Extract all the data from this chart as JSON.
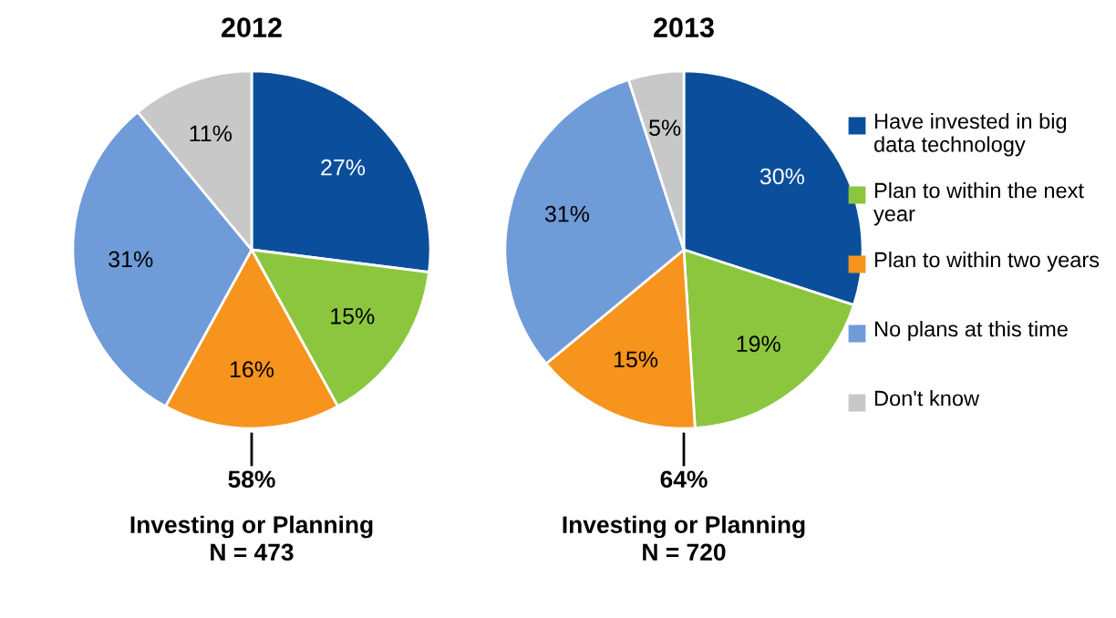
{
  "chart_data": [
    {
      "type": "pie",
      "title": "2012",
      "categories": [
        "Have invested in big data technology",
        "Plan to within the next year",
        "Plan to within two years",
        "No plans at this time",
        "Don't know"
      ],
      "values": [
        27,
        15,
        16,
        31,
        11
      ],
      "value_labels": [
        "27%",
        "15%",
        "16%",
        "31%",
        "11%"
      ],
      "colors": [
        "#0b4f9c",
        "#8cc63f",
        "#f7941d",
        "#6f9bd8",
        "#c8c8c8"
      ],
      "annotations": [
        "58%",
        "Investing or Planning",
        "N = 473"
      ],
      "legend": "right"
    },
    {
      "type": "pie",
      "title": "2013",
      "categories": [
        null,
        null,
        null,
        null,
        null
      ],
      "values": [
        30,
        19,
        15,
        31,
        5
      ],
      "value_labels": [
        "30%",
        "19%",
        "15%",
        "31%",
        "5%"
      ],
      "colors": [
        "#0b4f9c",
        "#8cc63f",
        "#f7941d",
        "#6f9bd8",
        "#c8c8c8"
      ],
      "annotations": [
        "64%",
        "Investing or Planning",
        "N = 720"
      ]
    }
  ]
}
